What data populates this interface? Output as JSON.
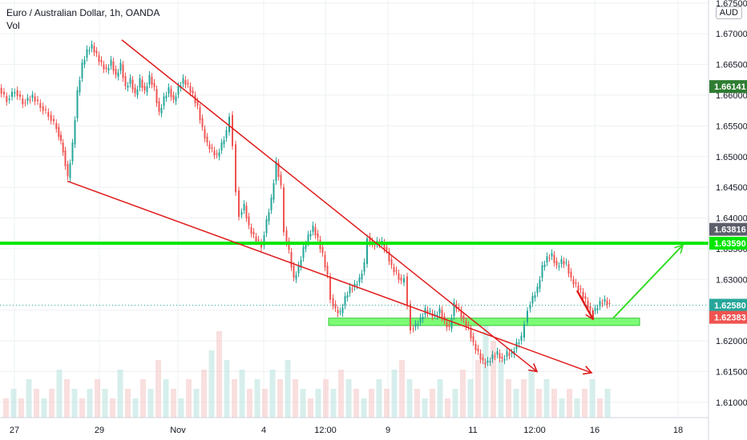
{
  "header": {
    "symbol_title": "Euro / Australian Dollar, 1h, OANDA",
    "volume_label": "Vol",
    "currency": "AUD"
  },
  "chart_data": {
    "type": "candlestick",
    "title": "Euro / Australian Dollar, 1h, OANDA",
    "ylim": [
      1.6075,
      1.6755
    ],
    "xlim": [
      0,
      934
    ],
    "grid": true,
    "y_ticks": [
      "1.67500",
      "1.67000",
      "1.66500",
      "1.66000",
      "1.65500",
      "1.65000",
      "1.64500",
      "1.64000",
      "1.63500",
      "1.63000",
      "1.62500",
      "1.62000",
      "1.61500",
      "1.61000"
    ],
    "x_ticks": [
      {
        "label": "27",
        "x": 18
      },
      {
        "label": "29",
        "x": 124
      },
      {
        "label": "Nov",
        "x": 222
      },
      {
        "label": "4",
        "x": 329
      },
      {
        "label": "12:00",
        "x": 406
      },
      {
        "label": "9",
        "x": 484
      },
      {
        "label": "11",
        "x": 590
      },
      {
        "label": "12:00",
        "x": 667
      },
      {
        "label": "16",
        "x": 742
      },
      {
        "label": "18",
        "x": 846
      }
    ],
    "price_path": [
      [
        0,
        1.6612
      ],
      [
        10,
        1.6592
      ],
      [
        20,
        1.6608
      ],
      [
        30,
        1.6588
      ],
      [
        42,
        1.6598
      ],
      [
        52,
        1.6582
      ],
      [
        62,
        1.6568
      ],
      [
        72,
        1.6548
      ],
      [
        80,
        1.651
      ],
      [
        86,
        1.6465
      ],
      [
        92,
        1.652
      ],
      [
        98,
        1.6605
      ],
      [
        104,
        1.665
      ],
      [
        110,
        1.6672
      ],
      [
        116,
        1.668
      ],
      [
        122,
        1.6665
      ],
      [
        128,
        1.665
      ],
      [
        134,
        1.664
      ],
      [
        140,
        1.6655
      ],
      [
        146,
        1.663
      ],
      [
        152,
        1.665
      ],
      [
        158,
        1.6612
      ],
      [
        164,
        1.6625
      ],
      [
        170,
        1.66
      ],
      [
        176,
        1.6625
      ],
      [
        182,
        1.6605
      ],
      [
        188,
        1.663
      ],
      [
        194,
        1.661
      ],
      [
        200,
        1.657
      ],
      [
        206,
        1.6595
      ],
      [
        212,
        1.661
      ],
      [
        218,
        1.659
      ],
      [
        224,
        1.6612
      ],
      [
        230,
        1.6625
      ],
      [
        236,
        1.6615
      ],
      [
        242,
        1.66
      ],
      [
        248,
        1.658
      ],
      [
        254,
        1.6545
      ],
      [
        260,
        1.652
      ],
      [
        266,
        1.651
      ],
      [
        272,
        1.65
      ],
      [
        278,
        1.652
      ],
      [
        284,
        1.654
      ],
      [
        288,
        1.6568
      ],
      [
        292,
        1.652
      ],
      [
        296,
        1.6445
      ],
      [
        300,
        1.6405
      ],
      [
        306,
        1.642
      ],
      [
        312,
        1.6385
      ],
      [
        318,
        1.637
      ],
      [
        324,
        1.636
      ],
      [
        328,
        1.6355
      ],
      [
        334,
        1.6395
      ],
      [
        340,
        1.643
      ],
      [
        346,
        1.649
      ],
      [
        352,
        1.645
      ],
      [
        356,
        1.638
      ],
      [
        362,
        1.6345
      ],
      [
        368,
        1.63
      ],
      [
        374,
        1.632
      ],
      [
        380,
        1.635
      ],
      [
        386,
        1.637
      ],
      [
        392,
        1.6385
      ],
      [
        398,
        1.6365
      ],
      [
        404,
        1.634
      ],
      [
        410,
        1.6305
      ],
      [
        414,
        1.627
      ],
      [
        420,
        1.625
      ],
      [
        426,
        1.6245
      ],
      [
        432,
        1.627
      ],
      [
        438,
        1.6285
      ],
      [
        444,
        1.629
      ],
      [
        450,
        1.63
      ],
      [
        456,
        1.6325
      ],
      [
        460,
        1.637
      ],
      [
        466,
        1.6355
      ],
      [
        472,
        1.636
      ],
      [
        478,
        1.636
      ],
      [
        484,
        1.6345
      ],
      [
        490,
        1.632
      ],
      [
        496,
        1.631
      ],
      [
        502,
        1.6295
      ],
      [
        506,
        1.6305
      ],
      [
        510,
        1.626
      ],
      [
        514,
        1.622
      ],
      [
        520,
        1.6225
      ],
      [
        526,
        1.6235
      ],
      [
        532,
        1.625
      ],
      [
        538,
        1.6245
      ],
      [
        544,
        1.624
      ],
      [
        550,
        1.625
      ],
      [
        556,
        1.623
      ],
      [
        562,
        1.622
      ],
      [
        568,
        1.626
      ],
      [
        574,
        1.625
      ],
      [
        580,
        1.6232
      ],
      [
        586,
        1.622
      ],
      [
        592,
        1.6195
      ],
      [
        598,
        1.618
      ],
      [
        604,
        1.6165
      ],
      [
        610,
        1.6165
      ],
      [
        616,
        1.6175
      ],
      [
        622,
        1.618
      ],
      [
        628,
        1.6168
      ],
      [
        634,
        1.618
      ],
      [
        640,
        1.6178
      ],
      [
        646,
        1.6195
      ],
      [
        652,
        1.6205
      ],
      [
        656,
        1.623
      ],
      [
        660,
        1.6252
      ],
      [
        666,
        1.627
      ],
      [
        672,
        1.6285
      ],
      [
        678,
        1.632
      ],
      [
        684,
        1.6335
      ],
      [
        690,
        1.634
      ],
      [
        696,
        1.632
      ],
      [
        702,
        1.633
      ],
      [
        708,
        1.6325
      ],
      [
        714,
        1.63
      ],
      [
        720,
        1.629
      ],
      [
        726,
        1.628
      ],
      [
        732,
        1.6265
      ],
      [
        738,
        1.6248
      ],
      [
        744,
        1.625
      ],
      [
        750,
        1.6262
      ],
      [
        756,
        1.6265
      ],
      [
        762,
        1.6258
      ]
    ],
    "volume": [
      2,
      3,
      2,
      4,
      3,
      2,
      3,
      5,
      4,
      3,
      2,
      3,
      4,
      3,
      2,
      5,
      3,
      2,
      4,
      3,
      6,
      4,
      3,
      2,
      4,
      3,
      5,
      7,
      9,
      6,
      4,
      5,
      3,
      4,
      3,
      5,
      4,
      6,
      4,
      3,
      2,
      3,
      4,
      3,
      5,
      4,
      3,
      2,
      3,
      4,
      3,
      5,
      6,
      4,
      3,
      2,
      3,
      4,
      2,
      3,
      5,
      4,
      6,
      10,
      8,
      6,
      4,
      3,
      4,
      5,
      3,
      4,
      3,
      2,
      3,
      2,
      3,
      4,
      2,
      3
    ],
    "horizontal_line": {
      "price": 1.6359,
      "color": "#00e600"
    },
    "support_zone": {
      "x_from": 410,
      "x_to": 798,
      "top": 1.6237,
      "bottom": 1.6225,
      "color": "#7cfc75"
    },
    "trendlines": [
      {
        "from": [
          152,
          1.669
        ],
        "to": [
          670,
          1.615
        ],
        "color": "#e01b1b"
      },
      {
        "from": [
          84,
          1.646
        ],
        "to": [
          738,
          1.6148
        ],
        "color": "#e01b1b"
      },
      {
        "from": [
          720,
          1.6282
        ],
        "to": [
          740,
          1.6235
        ],
        "color": "#e01b1b"
      }
    ],
    "projection": {
      "from": [
        765,
        1.6237
      ],
      "to": [
        852,
        1.6356
      ],
      "color": "#33dd22"
    },
    "price_labels": [
      {
        "value": "1.66141",
        "price": 1.66141,
        "color": "#2e7d32"
      },
      {
        "value": "1.63590",
        "price": 1.6359,
        "color": "#00e600"
      },
      {
        "value": "1.63816",
        "price": 1.63816,
        "color": "#5d606b"
      },
      {
        "value": "1.62580",
        "price": 1.6258,
        "color": "#26a69a"
      },
      {
        "value": "1.62383",
        "price": 1.62383,
        "color": "#ef5350"
      }
    ]
  }
}
